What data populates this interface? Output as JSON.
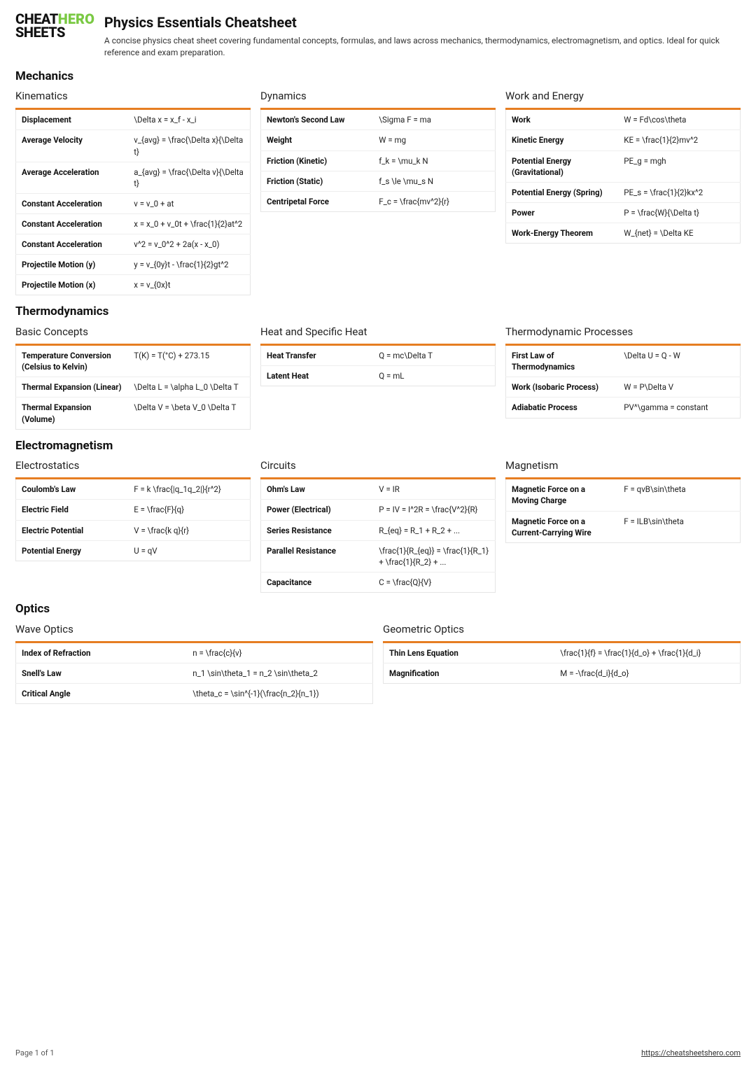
{
  "logo": {
    "line1_left": "CHEAT",
    "line1_right": "HERO",
    "line2_left": "SHEETS"
  },
  "title": "Physics Essentials Cheatsheet",
  "subtitle": "A concise physics cheat sheet covering fundamental concepts, formulas, and laws across mechanics, thermodynamics, electromagnetism, and optics. Ideal for quick reference and exam preparation.",
  "footer": {
    "page": "Page 1 of 1",
    "url": "https://cheatsheetshero.com"
  },
  "sections": [
    {
      "title": "Mechanics",
      "groups": [
        {
          "title": "Kinematics",
          "rows": [
            [
              "Displacement",
              "\\Delta x = x_f - x_i"
            ],
            [
              "Average Velocity",
              "v_{avg} = \\frac{\\Delta x}{\\Delta t}"
            ],
            [
              "Average Acceleration",
              "a_{avg} = \\frac{\\Delta v}{\\Delta t}"
            ],
            [
              "Constant Acceleration",
              "v = v_0 + at"
            ],
            [
              "Constant Acceleration",
              "x = x_0 + v_0t + \\frac{1}{2}at^2"
            ],
            [
              "Constant Acceleration",
              "v^2 = v_0^2 + 2a(x - x_0)"
            ],
            [
              "Projectile Motion (y)",
              "y = v_{0y}t - \\frac{1}{2}gt^2"
            ],
            [
              "Projectile Motion (x)",
              "x = v_{0x}t"
            ]
          ]
        },
        {
          "title": "Dynamics",
          "rows": [
            [
              "Newton's Second Law",
              "\\Sigma F = ma"
            ],
            [
              "Weight",
              "W = mg"
            ],
            [
              "Friction (Kinetic)",
              "f_k = \\mu_k N"
            ],
            [
              "Friction (Static)",
              "f_s \\le \\mu_s N"
            ],
            [
              "Centripetal Force",
              "F_c = \\frac{mv^2}{r}"
            ]
          ]
        },
        {
          "title": "Work and Energy",
          "rows": [
            [
              "Work",
              "W = Fd\\cos\\theta"
            ],
            [
              "Kinetic Energy",
              "KE = \\frac{1}{2}mv^2"
            ],
            [
              "Potential Energy (Gravitational)",
              "PE_g = mgh"
            ],
            [
              "Potential Energy (Spring)",
              "PE_s = \\frac{1}{2}kx^2"
            ],
            [
              "Power",
              "P = \\frac{W}{\\Delta t}"
            ],
            [
              "Work-Energy Theorem",
              "W_{net} = \\Delta KE"
            ]
          ]
        }
      ]
    },
    {
      "title": "Thermodynamics",
      "groups": [
        {
          "title": "Basic Concepts",
          "rows": [
            [
              "Temperature Conversion (Celsius to Kelvin)",
              "T(K) = T(°C) + 273.15"
            ],
            [
              "Thermal Expansion (Linear)",
              "\\Delta L = \\alpha L_0 \\Delta T"
            ],
            [
              "Thermal Expansion (Volume)",
              "\\Delta V = \\beta V_0 \\Delta T"
            ]
          ]
        },
        {
          "title": "Heat and Specific Heat",
          "rows": [
            [
              "Heat Transfer",
              "Q = mc\\Delta T"
            ],
            [
              "Latent Heat",
              "Q = mL"
            ]
          ]
        },
        {
          "title": "Thermodynamic Processes",
          "rows": [
            [
              "First Law of Thermodynamics",
              "\\Delta U = Q - W"
            ],
            [
              "Work (Isobaric Process)",
              "W = P\\Delta V"
            ],
            [
              "Adiabatic Process",
              "PV^\\gamma = constant"
            ]
          ]
        }
      ]
    },
    {
      "title": "Electromagnetism",
      "groups": [
        {
          "title": "Electrostatics",
          "rows": [
            [
              "Coulomb's Law",
              "F = k \\frac{|q_1q_2|}{r^2}"
            ],
            [
              "Electric Field",
              "E = \\frac{F}{q}"
            ],
            [
              "Electric Potential",
              "V = \\frac{k q}{r}"
            ],
            [
              "Potential Energy",
              "U = qV"
            ]
          ]
        },
        {
          "title": "Circuits",
          "rows": [
            [
              "Ohm's Law",
              "V = IR"
            ],
            [
              "Power (Electrical)",
              "P = IV = I^2R = \\frac{V^2}{R}"
            ],
            [
              "Series Resistance",
              "R_{eq} = R_1 + R_2 + ..."
            ],
            [
              "Parallel Resistance",
              "\\frac{1}{R_{eq}} = \\frac{1}{R_1} + \\frac{1}{R_2} + ..."
            ],
            [
              "Capacitance",
              "C = \\frac{Q}{V}"
            ]
          ]
        },
        {
          "title": "Magnetism",
          "rows": [
            [
              "Magnetic Force on a Moving Charge",
              "F = qvB\\sin\\theta"
            ],
            [
              "Magnetic Force on a Current-Carrying Wire",
              "F = ILB\\sin\\theta"
            ]
          ]
        }
      ]
    },
    {
      "title": "Optics",
      "cols": 2,
      "groups": [
        {
          "title": "Wave Optics",
          "rows": [
            [
              "Index of Refraction",
              "n = \\frac{c}{v}"
            ],
            [
              "Snell's Law",
              "n_1 \\sin\\theta_1 = n_2 \\sin\\theta_2"
            ],
            [
              "Critical Angle",
              "\\theta_c = \\sin^{-1}(\\frac{n_2}{n_1})"
            ]
          ]
        },
        {
          "title": "Geometric Optics",
          "rows": [
            [
              "Thin Lens Equation",
              "\\frac{1}{f} = \\frac{1}{d_o} + \\frac{1}{d_i}"
            ],
            [
              "Magnification",
              "M = -\\frac{d_i}{d_o}"
            ]
          ]
        }
      ]
    }
  ]
}
